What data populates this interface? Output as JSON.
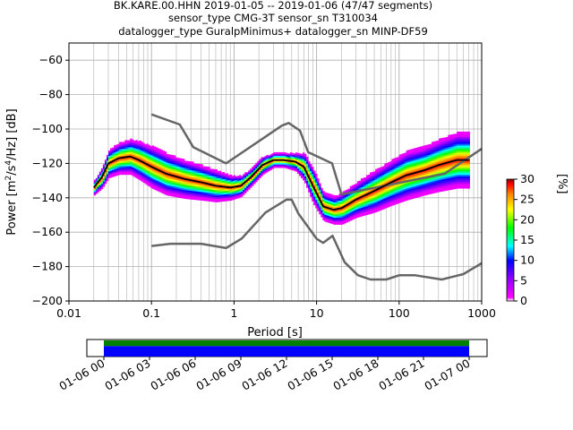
{
  "chart_data": {
    "type": "heatmap",
    "title_lines": [
      "BK.KARE.00.HHN   2019-01-05 -- 2019-01-06  (47/47 segments)",
      "sensor_type CMG-3T sensor_sn T310034",
      "datalogger_type GuralpMinimus+ datalogger_sn MINP-DF59"
    ],
    "xlabel": "Period [s]",
    "ylabel": "Power [m²/s⁴/Hz] [dB]",
    "ylabel_parts": {
      "pre": "Power [m",
      "sup1": "2",
      "mid": "/s",
      "sup2": "4",
      "post": "/Hz] [dB]"
    },
    "x_scale": "log",
    "xlim": [
      0.01,
      1000
    ],
    "ylim": [
      -200,
      -50
    ],
    "x_ticks": [
      0.01,
      0.1,
      1,
      10,
      100,
      1000
    ],
    "x_tick_labels": [
      "0.01",
      "0.1",
      "1",
      "10",
      "100",
      "1000"
    ],
    "y_ticks": [
      -60,
      -80,
      -100,
      -120,
      -140,
      -160,
      -180,
      -200
    ],
    "y_tick_labels": [
      "−60",
      "−80",
      "−100",
      "−120",
      "−140",
      "−160",
      "−180",
      "−200"
    ],
    "grid": true,
    "colorbar": {
      "label": "[%]",
      "range": [
        0,
        30
      ],
      "ticks": [
        0,
        5,
        10,
        15,
        20,
        25,
        30
      ],
      "tick_labels": [
        "0",
        "5",
        "10",
        "15",
        "20",
        "25",
        "30"
      ],
      "colors": [
        "#ffffff",
        "#ff00ff",
        "#0000ff",
        "#00ffff",
        "#00ff00",
        "#ffff00",
        "#ff8000",
        "#ff0000",
        "#800000"
      ]
    },
    "model_curves": [
      {
        "name": "high noise model",
        "color": "#666666",
        "points": [
          [
            0.1,
            -91.5
          ],
          [
            0.22,
            -97.4
          ],
          [
            0.32,
            -110.5
          ],
          [
            0.8,
            -120
          ],
          [
            3.8,
            -98
          ],
          [
            4.6,
            -96.5
          ],
          [
            6.3,
            -101
          ],
          [
            7.9,
            -113.5
          ],
          [
            15.4,
            -120
          ],
          [
            20,
            -138
          ],
          [
            354.8,
            -126
          ],
          [
            1000,
            -111.5
          ]
        ]
      },
      {
        "name": "low noise model",
        "color": "#666666",
        "points": [
          [
            0.1,
            -168
          ],
          [
            0.17,
            -166.7
          ],
          [
            0.4,
            -166.7
          ],
          [
            0.8,
            -169.2
          ],
          [
            1.24,
            -163.7
          ],
          [
            2.4,
            -148.6
          ],
          [
            4.3,
            -141.1
          ],
          [
            5,
            -141.1
          ],
          [
            6,
            -149
          ],
          [
            10,
            -163.8
          ],
          [
            12,
            -166.2
          ],
          [
            15.6,
            -162.1
          ],
          [
            21.9,
            -177.5
          ],
          [
            31.6,
            -185
          ],
          [
            45,
            -187.5
          ],
          [
            70,
            -187.5
          ],
          [
            101,
            -185
          ],
          [
            154,
            -185
          ],
          [
            328,
            -187.5
          ],
          [
            600,
            -184.4
          ],
          [
            1000,
            -178
          ]
        ]
      }
    ],
    "mode_curve": {
      "color": "#000000",
      "points": [
        [
          0.02,
          -134
        ],
        [
          0.025,
          -128
        ],
        [
          0.03,
          -120
        ],
        [
          0.04,
          -117
        ],
        [
          0.055,
          -116
        ],
        [
          0.07,
          -118
        ],
        [
          0.1,
          -122
        ],
        [
          0.15,
          -126
        ],
        [
          0.25,
          -129
        ],
        [
          0.4,
          -131
        ],
        [
          0.6,
          -133
        ],
        [
          0.9,
          -134
        ],
        [
          1.2,
          -133
        ],
        [
          1.6,
          -128
        ],
        [
          2.2,
          -121
        ],
        [
          3,
          -118
        ],
        [
          4,
          -118
        ],
        [
          5.5,
          -119
        ],
        [
          7,
          -122
        ],
        [
          9,
          -133
        ],
        [
          12,
          -145
        ],
        [
          16,
          -147
        ],
        [
          20,
          -146
        ],
        [
          30,
          -141
        ],
        [
          50,
          -136
        ],
        [
          80,
          -131
        ],
        [
          120,
          -127
        ],
        [
          200,
          -124
        ],
        [
          300,
          -121
        ],
        [
          500,
          -118
        ],
        [
          700,
          -118
        ]
      ]
    },
    "density_band": {
      "description_free": true,
      "points": [
        [
          0.02,
          -134,
          4
        ],
        [
          0.025,
          -128,
          6
        ],
        [
          0.03,
          -120,
          8
        ],
        [
          0.04,
          -117,
          9
        ],
        [
          0.055,
          -116,
          10
        ],
        [
          0.07,
          -118,
          11
        ],
        [
          0.1,
          -122,
          12
        ],
        [
          0.15,
          -126,
          12
        ],
        [
          0.25,
          -129,
          11
        ],
        [
          0.4,
          -131,
          10
        ],
        [
          0.6,
          -133,
          9
        ],
        [
          0.9,
          -134,
          7
        ],
        [
          1.2,
          -133,
          6
        ],
        [
          1.6,
          -128,
          5
        ],
        [
          2.2,
          -121,
          5
        ],
        [
          3,
          -118,
          4
        ],
        [
          4,
          -118,
          4
        ],
        [
          5.5,
          -119,
          5
        ],
        [
          7,
          -122,
          8
        ],
        [
          9,
          -133,
          10
        ],
        [
          12,
          -145,
          8
        ],
        [
          16,
          -147,
          8
        ],
        [
          20,
          -146,
          9
        ],
        [
          30,
          -141,
          10
        ],
        [
          50,
          -136,
          12
        ],
        [
          80,
          -131,
          13
        ],
        [
          120,
          -127,
          14
        ],
        [
          200,
          -124,
          14
        ],
        [
          300,
          -121,
          15
        ],
        [
          500,
          -118,
          16
        ],
        [
          700,
          -118,
          16
        ]
      ]
    },
    "timeline": {
      "tick_labels": [
        "01-06 00",
        "01-06 03",
        "01-06 06",
        "01-06 09",
        "01-06 12",
        "01-06 15",
        "01-06 18",
        "01-06 21",
        "01-07 00"
      ],
      "coverage_colors": [
        "#008000",
        "#0000ff"
      ],
      "coverage_fraction": [
        0.0,
        1.0
      ]
    }
  }
}
